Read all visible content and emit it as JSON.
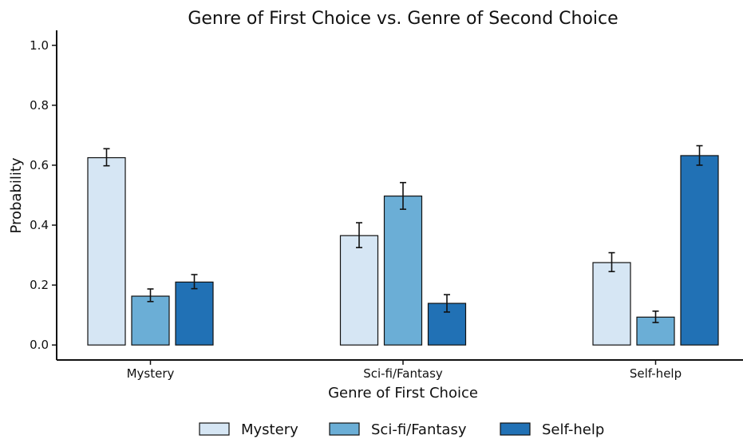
{
  "chart_data": {
    "type": "bar",
    "title": "Genre of First Choice vs. Genre of Second Choice",
    "xlabel": "Genre of First Choice",
    "ylabel": "Probability",
    "ylim": [
      -0.05,
      1.05
    ],
    "yticks": [
      "0.0",
      "0.2",
      "0.4",
      "0.6",
      "0.8",
      "1.0"
    ],
    "categories": [
      "Mystery",
      "Sci-fi/Fantasy",
      "Self-help"
    ],
    "series": [
      {
        "name": "Mystery",
        "color": "#d6e6f4",
        "values": [
          0.625,
          0.365,
          0.275
        ],
        "err_low": [
          0.598,
          0.325,
          0.245
        ],
        "err_high": [
          0.655,
          0.408,
          0.308
        ]
      },
      {
        "name": "Sci-fi/Fantasy",
        "color": "#6baed6",
        "values": [
          0.163,
          0.497,
          0.093
        ],
        "err_low": [
          0.145,
          0.453,
          0.075
        ],
        "err_high": [
          0.187,
          0.542,
          0.113
        ]
      },
      {
        "name": "Self-help",
        "color": "#2171b5",
        "values": [
          0.21,
          0.139,
          0.632
        ],
        "err_low": [
          0.188,
          0.11,
          0.6
        ],
        "err_high": [
          0.235,
          0.168,
          0.665
        ]
      }
    ],
    "legend_position": "bottom",
    "grid": false
  }
}
